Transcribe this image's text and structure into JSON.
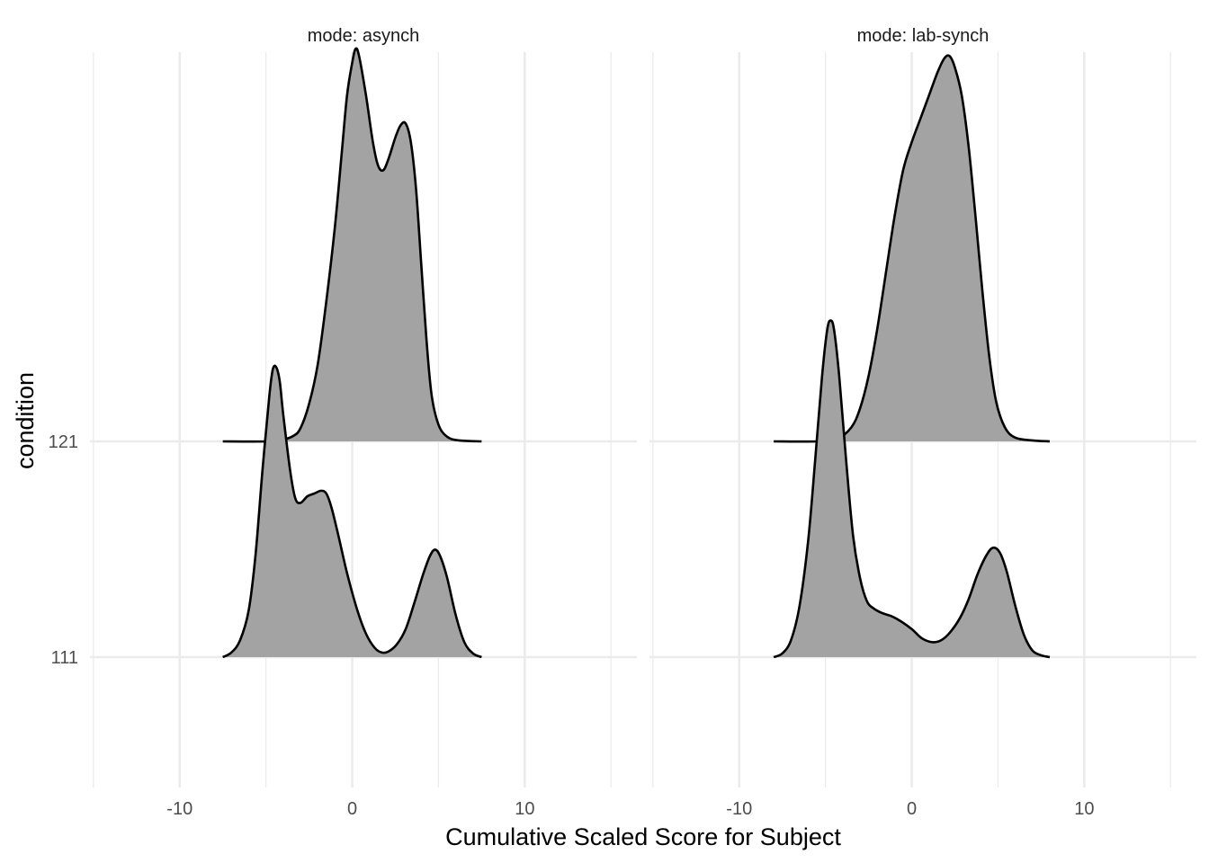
{
  "chart_data": {
    "type": "ridgeline",
    "xlabel": "Cumulative Scaled Score for Subject",
    "ylabel": "condition",
    "xlim": [
      -15.2,
      16.5
    ],
    "x_ticks": [
      -10,
      0,
      10
    ],
    "x_tick_labels": [
      "-10",
      "0",
      "10"
    ],
    "x_minor_ticks": [
      -15,
      -5,
      5,
      15
    ],
    "y_categories": [
      "111",
      "121"
    ],
    "fill_color": "#a3a3a3",
    "line_color": "#000000",
    "grid_color": "#ebebeb",
    "panels": [
      {
        "strip_label": "mode: asynch",
        "series": [
          {
            "category": "111",
            "density": [
              [
                -7.5,
                0.0
              ],
              [
                -7.0,
                0.05
              ],
              [
                -6.5,
                0.18
              ],
              [
                -6.0,
                0.5
              ],
              [
                -5.6,
                1.1
              ],
              [
                -5.2,
                2.0
              ],
              [
                -4.8,
                2.8
              ],
              [
                -4.6,
                3.08
              ],
              [
                -4.4,
                3.1
              ],
              [
                -4.2,
                2.95
              ],
              [
                -4.0,
                2.6
              ],
              [
                -3.6,
                2.0
              ],
              [
                -3.3,
                1.7
              ],
              [
                -3.0,
                1.65
              ],
              [
                -2.6,
                1.72
              ],
              [
                -2.2,
                1.75
              ],
              [
                -1.8,
                1.78
              ],
              [
                -1.5,
                1.75
              ],
              [
                -1.2,
                1.6
              ],
              [
                -0.8,
                1.3
              ],
              [
                -0.3,
                0.9
              ],
              [
                0.3,
                0.5
              ],
              [
                0.8,
                0.25
              ],
              [
                1.3,
                0.1
              ],
              [
                1.7,
                0.05
              ],
              [
                2.1,
                0.06
              ],
              [
                2.6,
                0.14
              ],
              [
                3.1,
                0.3
              ],
              [
                3.6,
                0.58
              ],
              [
                4.1,
                0.88
              ],
              [
                4.5,
                1.08
              ],
              [
                4.8,
                1.15
              ],
              [
                5.1,
                1.08
              ],
              [
                5.5,
                0.85
              ],
              [
                6.0,
                0.45
              ],
              [
                6.5,
                0.16
              ],
              [
                7.0,
                0.04
              ],
              [
                7.5,
                0.0
              ]
            ]
          },
          {
            "category": "121",
            "density": [
              [
                -7.5,
                0.0
              ],
              [
                -5.0,
                0.0
              ],
              [
                -4.0,
                0.02
              ],
              [
                -3.4,
                0.06
              ],
              [
                -3.0,
                0.14
              ],
              [
                -2.5,
                0.4
              ],
              [
                -2.0,
                0.82
              ],
              [
                -1.5,
                1.5
              ],
              [
                -1.0,
                2.3
              ],
              [
                -0.6,
                3.1
              ],
              [
                -0.3,
                3.7
              ],
              [
                0.0,
                4.05
              ],
              [
                0.2,
                4.2
              ],
              [
                0.4,
                4.12
              ],
              [
                0.8,
                3.7
              ],
              [
                1.2,
                3.2
              ],
              [
                1.5,
                2.95
              ],
              [
                1.8,
                2.9
              ],
              [
                2.1,
                3.02
              ],
              [
                2.5,
                3.25
              ],
              [
                2.8,
                3.38
              ],
              [
                3.1,
                3.4
              ],
              [
                3.4,
                3.2
              ],
              [
                3.7,
                2.7
              ],
              [
                4.0,
                1.9
              ],
              [
                4.3,
                1.1
              ],
              [
                4.6,
                0.5
              ],
              [
                5.0,
                0.18
              ],
              [
                5.5,
                0.05
              ],
              [
                6.2,
                0.01
              ],
              [
                7.5,
                0.0
              ]
            ]
          }
        ]
      },
      {
        "strip_label": "mode: lab-synch",
        "series": [
          {
            "category": "111",
            "density": [
              [
                -8.0,
                0.0
              ],
              [
                -7.5,
                0.04
              ],
              [
                -7.0,
                0.18
              ],
              [
                -6.5,
                0.55
              ],
              [
                -6.0,
                1.25
              ],
              [
                -5.6,
                2.1
              ],
              [
                -5.2,
                3.0
              ],
              [
                -4.9,
                3.5
              ],
              [
                -4.7,
                3.6
              ],
              [
                -4.5,
                3.5
              ],
              [
                -4.2,
                3.0
              ],
              [
                -3.8,
                2.1
              ],
              [
                -3.4,
                1.3
              ],
              [
                -3.0,
                0.85
              ],
              [
                -2.6,
                0.6
              ],
              [
                -2.2,
                0.52
              ],
              [
                -1.7,
                0.47
              ],
              [
                -1.2,
                0.44
              ],
              [
                -0.6,
                0.38
              ],
              [
                0.0,
                0.3
              ],
              [
                0.6,
                0.2
              ],
              [
                1.2,
                0.16
              ],
              [
                1.7,
                0.18
              ],
              [
                2.2,
                0.26
              ],
              [
                2.8,
                0.42
              ],
              [
                3.3,
                0.62
              ],
              [
                3.8,
                0.88
              ],
              [
                4.3,
                1.08
              ],
              [
                4.7,
                1.17
              ],
              [
                5.1,
                1.12
              ],
              [
                5.5,
                0.92
              ],
              [
                6.0,
                0.55
              ],
              [
                6.5,
                0.24
              ],
              [
                7.0,
                0.07
              ],
              [
                7.5,
                0.02
              ],
              [
                8.0,
                0.0
              ]
            ]
          },
          {
            "category": "121",
            "density": [
              [
                -8.0,
                0.0
              ],
              [
                -5.5,
                0.0
              ],
              [
                -4.3,
                0.03
              ],
              [
                -3.5,
                0.15
              ],
              [
                -3.0,
                0.35
              ],
              [
                -2.5,
                0.7
              ],
              [
                -2.0,
                1.2
              ],
              [
                -1.5,
                1.8
              ],
              [
                -1.0,
                2.4
              ],
              [
                -0.5,
                2.9
              ],
              [
                0.0,
                3.2
              ],
              [
                0.5,
                3.45
              ],
              [
                1.0,
                3.7
              ],
              [
                1.5,
                3.95
              ],
              [
                1.9,
                4.1
              ],
              [
                2.2,
                4.12
              ],
              [
                2.5,
                4.0
              ],
              [
                2.9,
                3.7
              ],
              [
                3.3,
                3.15
              ],
              [
                3.7,
                2.4
              ],
              [
                4.1,
                1.6
              ],
              [
                4.5,
                0.9
              ],
              [
                4.9,
                0.42
              ],
              [
                5.4,
                0.15
              ],
              [
                6.0,
                0.04
              ],
              [
                7.0,
                0.01
              ],
              [
                8.0,
                0.0
              ]
            ]
          }
        ]
      }
    ]
  }
}
